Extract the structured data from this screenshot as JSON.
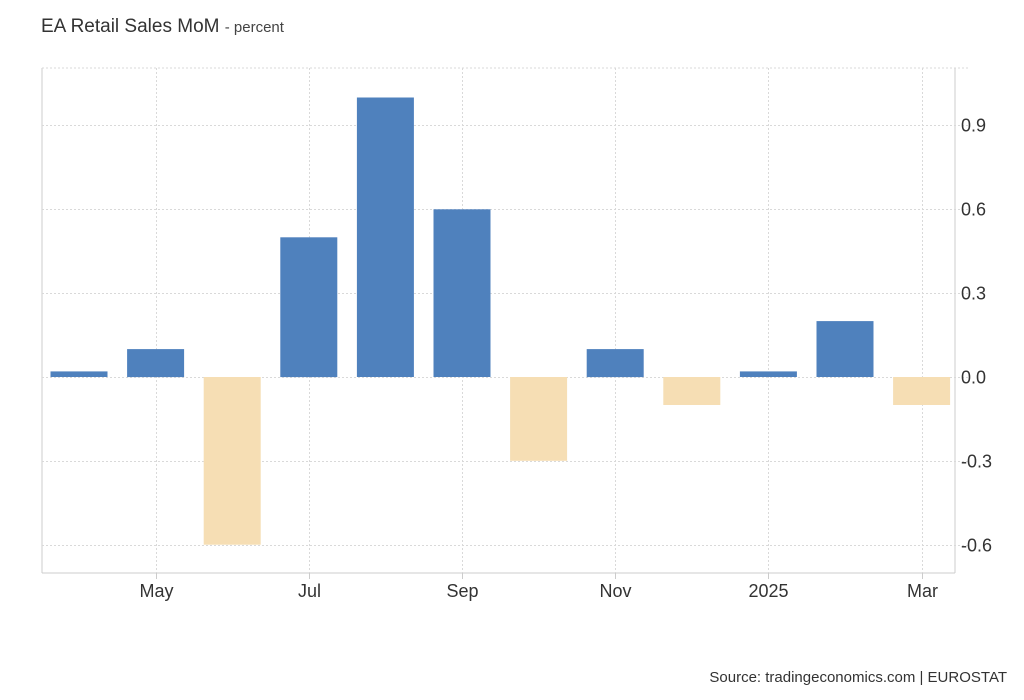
{
  "header": {
    "title": "EA Retail Sales MoM",
    "unit_label": "- percent"
  },
  "footer": {
    "source": "Source: tradingeconomics.com | EUROSTAT"
  },
  "colors": {
    "positive": "#4f81bd",
    "negative": "#f6deb4",
    "grid": "#d9d9d9",
    "axis": "#cccccc",
    "text": "#333333"
  },
  "chart_data": {
    "type": "bar",
    "title": "EA Retail Sales MoM",
    "ylabel": "percent",
    "xlabel": "",
    "categories": [
      "2024-04",
      "2024-05",
      "2024-06",
      "2024-07",
      "2024-08",
      "2024-09",
      "2024-10",
      "2024-11",
      "2024-12",
      "2025-01",
      "2025-02",
      "2025-03"
    ],
    "values": [
      0.02,
      0.1,
      -0.6,
      0.5,
      1.0,
      0.6,
      -0.3,
      0.1,
      -0.1,
      0.02,
      0.2,
      -0.1
    ],
    "ylim": [
      -0.7,
      1.1
    ],
    "yticks": [
      0.9,
      0.6,
      0.3,
      0.0,
      -0.3,
      -0.6
    ],
    "ytick_labels": [
      "0.9",
      "0.6",
      "0.3",
      "0.0",
      "-0.3",
      "-0.6"
    ],
    "xtick_labels": [
      {
        "label": "May",
        "index": 1
      },
      {
        "label": "Jul",
        "index": 3
      },
      {
        "label": "Sep",
        "index": 5
      },
      {
        "label": "Nov",
        "index": 7
      },
      {
        "label": "2025",
        "index": 9
      },
      {
        "label": "Mar",
        "index": 11
      }
    ],
    "grid": true,
    "legend": "none"
  }
}
